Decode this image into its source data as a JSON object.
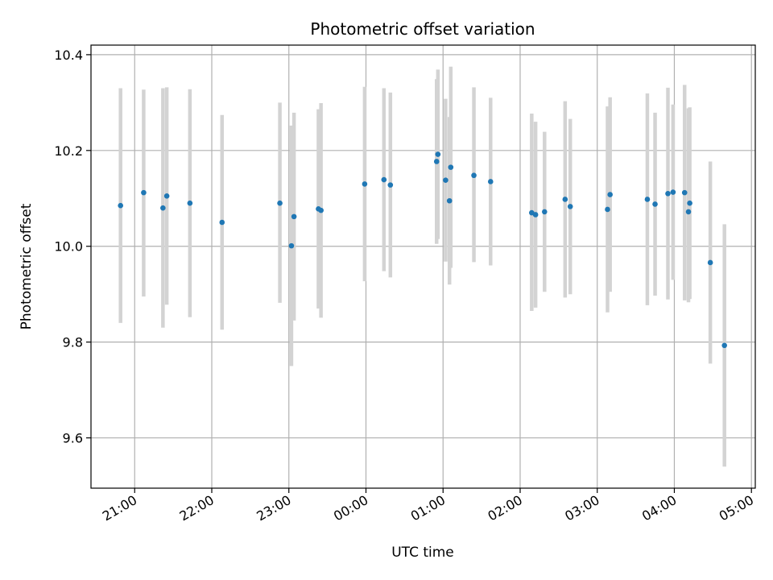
{
  "chart_data": {
    "type": "scatter",
    "title": "Photometric offset variation",
    "xlabel": "UTC time",
    "ylabel": "Photometric offset",
    "x_axis_type": "time",
    "xlim": [
      "20:26",
      "05:03"
    ],
    "ylim": [
      9.495,
      10.42
    ],
    "grid": true,
    "legend": "none",
    "colors": {
      "points": "#1f77b4",
      "errorbars": "#d3d3d3"
    },
    "xticks": [
      "21:00",
      "22:00",
      "23:00",
      "00:00",
      "01:00",
      "02:00",
      "03:00",
      "04:00",
      "05:00"
    ],
    "yticks": [
      "9.6",
      "9.8",
      "10.0",
      "10.2",
      "10.4"
    ],
    "points": [
      {
        "t": "20:49",
        "y": 10.085,
        "lo": 9.84,
        "hi": 10.33
      },
      {
        "t": "21:07",
        "y": 10.112,
        "lo": 9.895,
        "hi": 10.327
      },
      {
        "t": "21:22",
        "y": 10.08,
        "lo": 9.83,
        "hi": 10.33
      },
      {
        "t": "21:25",
        "y": 10.105,
        "lo": 9.878,
        "hi": 10.332
      },
      {
        "t": "21:43",
        "y": 10.09,
        "lo": 9.852,
        "hi": 10.328
      },
      {
        "t": "22:08",
        "y": 10.05,
        "lo": 9.826,
        "hi": 10.274
      },
      {
        "t": "22:53",
        "y": 10.09,
        "lo": 9.882,
        "hi": 10.3
      },
      {
        "t": "23:02",
        "y": 10.001,
        "lo": 9.75,
        "hi": 10.252
      },
      {
        "t": "23:04",
        "y": 10.062,
        "lo": 9.845,
        "hi": 10.279
      },
      {
        "t": "23:23",
        "y": 10.078,
        "lo": 9.87,
        "hi": 10.286
      },
      {
        "t": "23:25",
        "y": 10.075,
        "lo": 9.851,
        "hi": 10.299
      },
      {
        "t": "23:59",
        "y": 10.13,
        "lo": 9.927,
        "hi": 10.333
      },
      {
        "t": "00:14",
        "y": 10.139,
        "lo": 9.948,
        "hi": 10.33
      },
      {
        "t": "00:19",
        "y": 10.128,
        "lo": 9.935,
        "hi": 10.321
      },
      {
        "t": "00:55",
        "y": 10.177,
        "lo": 10.005,
        "hi": 10.349
      },
      {
        "t": "00:56",
        "y": 10.192,
        "lo": 10.015,
        "hi": 10.369
      },
      {
        "t": "01:02",
        "y": 10.138,
        "lo": 9.968,
        "hi": 10.308
      },
      {
        "t": "01:05",
        "y": 10.095,
        "lo": 9.92,
        "hi": 10.27
      },
      {
        "t": "01:06",
        "y": 10.165,
        "lo": 9.955,
        "hi": 10.375
      },
      {
        "t": "01:24",
        "y": 10.148,
        "lo": 9.967,
        "hi": 10.332
      },
      {
        "t": "01:37",
        "y": 10.135,
        "lo": 9.96,
        "hi": 10.31
      },
      {
        "t": "02:09",
        "y": 10.07,
        "lo": 9.865,
        "hi": 10.277
      },
      {
        "t": "02:12",
        "y": 10.066,
        "lo": 9.872,
        "hi": 10.26
      },
      {
        "t": "02:19",
        "y": 10.072,
        "lo": 9.905,
        "hi": 10.239
      },
      {
        "t": "02:35",
        "y": 10.098,
        "lo": 9.893,
        "hi": 10.303
      },
      {
        "t": "02:39",
        "y": 10.083,
        "lo": 9.9,
        "hi": 10.266
      },
      {
        "t": "03:08",
        "y": 10.077,
        "lo": 9.862,
        "hi": 10.292
      },
      {
        "t": "03:10",
        "y": 10.108,
        "lo": 9.905,
        "hi": 10.311
      },
      {
        "t": "03:39",
        "y": 10.098,
        "lo": 9.877,
        "hi": 10.319
      },
      {
        "t": "03:45",
        "y": 10.088,
        "lo": 9.897,
        "hi": 10.279
      },
      {
        "t": "03:55",
        "y": 10.11,
        "lo": 9.889,
        "hi": 10.331
      },
      {
        "t": "03:59",
        "y": 10.113,
        "lo": 9.93,
        "hi": 10.296
      },
      {
        "t": "04:08",
        "y": 10.112,
        "lo": 9.887,
        "hi": 10.337
      },
      {
        "t": "04:11",
        "y": 10.072,
        "lo": 9.883,
        "hi": 10.288
      },
      {
        "t": "04:12",
        "y": 10.09,
        "lo": 9.89,
        "hi": 10.29
      },
      {
        "t": "04:28",
        "y": 9.966,
        "lo": 9.755,
        "hi": 10.177
      },
      {
        "t": "04:39",
        "y": 9.793,
        "lo": 9.54,
        "hi": 10.046
      }
    ]
  }
}
